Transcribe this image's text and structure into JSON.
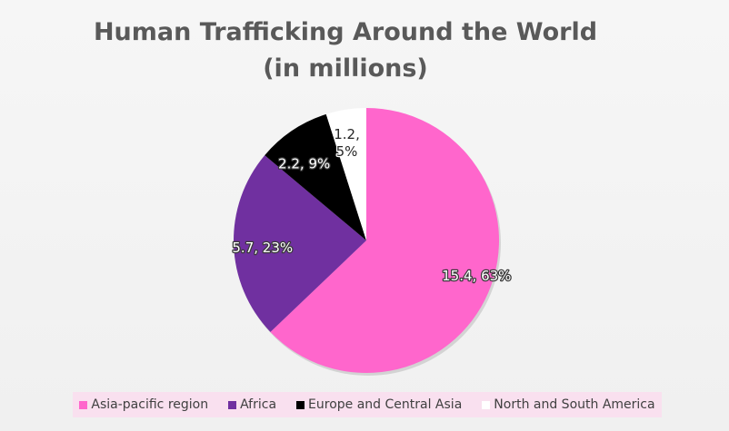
{
  "chart_data": {
    "type": "pie",
    "title_line1": "Human Trafficking Around the World",
    "title_line2": "(in millions)",
    "slices": [
      {
        "name": "Asia-pacific region",
        "value": 15.4,
        "percent": "63%",
        "label": "15.4, 63%",
        "color": "#ff66cc"
      },
      {
        "name": "Africa",
        "value": 5.7,
        "percent": "23%",
        "label": "5.7, 23%",
        "color": "#7030a0"
      },
      {
        "name": "Europe and Central Asia",
        "value": 2.2,
        "percent": "9%",
        "label": "2.2, 9%",
        "color": "#000000"
      },
      {
        "name": "North and South America",
        "value": 1.2,
        "percent": "5%",
        "label": "1.2,\n5%",
        "color": "#ffffff"
      }
    ],
    "legend_placement": "bottom"
  }
}
